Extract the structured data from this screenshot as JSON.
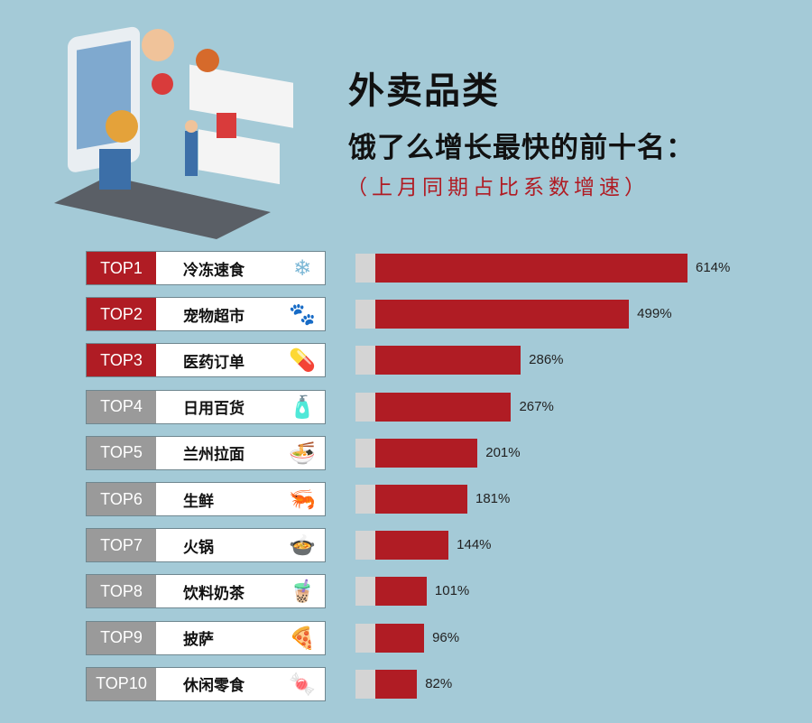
{
  "header": {
    "title": "外卖品类",
    "subtitle": "饿了么增长最快的前十名：",
    "note": "（上月同期占比系数增速）"
  },
  "colors": {
    "background": "#a4cad7",
    "top3": "#b01c24",
    "others": "#9a9a9a",
    "bar": "#b01c24",
    "bar_stub": "#d4d4d4"
  },
  "chart_data": {
    "type": "bar",
    "orientation": "horizontal",
    "categories": [
      "冷冻速食",
      "宠物超市",
      "医药订单",
      "日用百货",
      "兰州拉面",
      "生鲜",
      "火锅",
      "饮料奶茶",
      "披萨",
      "休闲零食"
    ],
    "ranks": [
      "TOP1",
      "TOP2",
      "TOP3",
      "TOP4",
      "TOP5",
      "TOP6",
      "TOP7",
      "TOP8",
      "TOP9",
      "TOP10"
    ],
    "values": [
      614,
      499,
      286,
      267,
      201,
      181,
      144,
      101,
      96,
      82
    ],
    "value_labels": [
      "614%",
      "499%",
      "286%",
      "267%",
      "201%",
      "181%",
      "144%",
      "101%",
      "96%",
      "82%"
    ],
    "icons": [
      "snowflake-icon",
      "paw-icon",
      "pill-icon",
      "toiletries-icon",
      "noodle-bowl-icon",
      "shrimp-icon",
      "hotpot-icon",
      "milk-tea-icon",
      "pizza-icon",
      "snacks-icon"
    ],
    "unit": "%"
  }
}
